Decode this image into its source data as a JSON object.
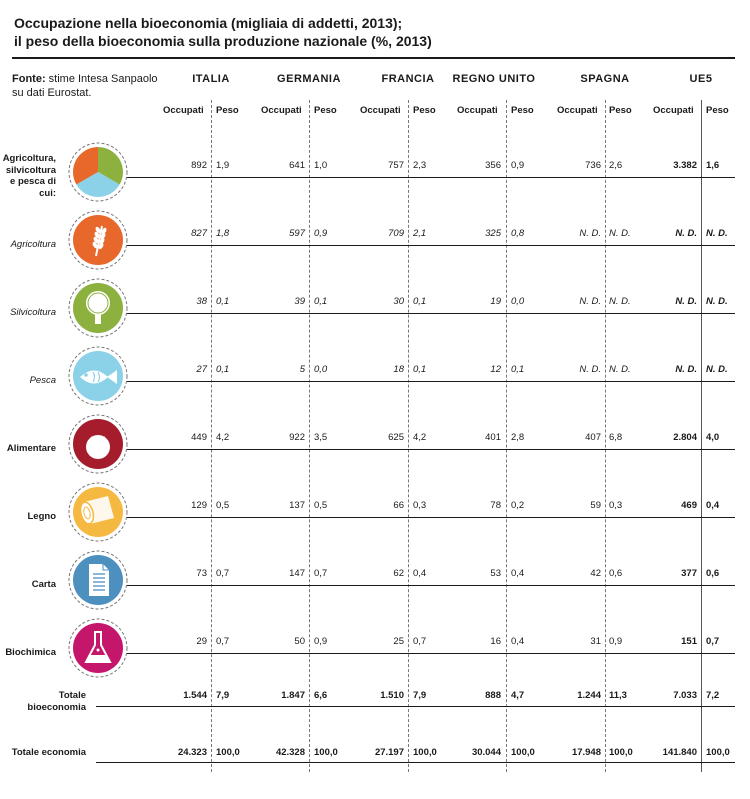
{
  "title_line1": "Occupazione nella bioeconomia (migliaia di addetti, 2013);",
  "title_line2": "il peso della bioeconomia sulla produzione nazionale (%, 2013)",
  "source_label": "Fonte:",
  "source_text": " stime Intesa Sanpaolo su dati Eurostat.",
  "columns": {
    "countries": [
      "ITALIA",
      "GERMANIA",
      "FRANCIA",
      "REGNO UNITO",
      "SPAGNA",
      "UE5"
    ],
    "occupati": "Occupati",
    "peso": "Peso"
  },
  "icons": {
    "agricoltura_silvicoltura_pesca": "pie-icon",
    "agricoltura": "wheat-icon",
    "silvicoltura": "tree-icon",
    "pesca": "fish-icon",
    "alimentare": "tomato-icon",
    "legno": "log-icon",
    "carta": "document-icon",
    "biochimica": "flask-icon"
  },
  "colors": {
    "orange": "#e8672a",
    "green": "#8cb13f",
    "lightblue": "#8bd1e8",
    "darkred": "#a51d2d",
    "yellow": "#f5b942",
    "steelblue": "#4d8fbf",
    "magenta": "#c4176c"
  },
  "chart_data": {
    "type": "table",
    "title": "Occupazione nella bioeconomia (migliaia di addetti, 2013); il peso della bioeconomia sulla produzione nazionale (%, 2013)",
    "columns": [
      "ITALIA",
      "GERMANIA",
      "FRANCIA",
      "REGNO UNITO",
      "SPAGNA",
      "UE5"
    ],
    "subcolumns": [
      "Occupati",
      "Peso"
    ],
    "rows": [
      {
        "label": "Agricoltura, silvicoltura e pesca di cui:",
        "style": "main",
        "values": [
          [
            "892",
            "1,9"
          ],
          [
            "641",
            "1,0"
          ],
          [
            "757",
            "2,3"
          ],
          [
            "356",
            "0,9"
          ],
          [
            "736",
            "2,6"
          ],
          [
            "3.382",
            "1,6"
          ]
        ]
      },
      {
        "label": "Agricoltura",
        "style": "sub",
        "values": [
          [
            "827",
            "1,8"
          ],
          [
            "597",
            "0,9"
          ],
          [
            "709",
            "2,1"
          ],
          [
            "325",
            "0,8"
          ],
          [
            "N. D.",
            "N. D."
          ],
          [
            "N. D.",
            "N. D."
          ]
        ]
      },
      {
        "label": "Silvicoltura",
        "style": "sub",
        "values": [
          [
            "38",
            "0,1"
          ],
          [
            "39",
            "0,1"
          ],
          [
            "30",
            "0,1"
          ],
          [
            "19",
            "0,0"
          ],
          [
            "N. D.",
            "N. D."
          ],
          [
            "N. D.",
            "N. D."
          ]
        ]
      },
      {
        "label": "Pesca",
        "style": "sub",
        "values": [
          [
            "27",
            "0,1"
          ],
          [
            "5",
            "0,0"
          ],
          [
            "18",
            "0,1"
          ],
          [
            "12",
            "0,1"
          ],
          [
            "N. D.",
            "N. D."
          ],
          [
            "N. D.",
            "N. D."
          ]
        ]
      },
      {
        "label": "Alimentare",
        "style": "main",
        "values": [
          [
            "449",
            "4,2"
          ],
          [
            "922",
            "3,5"
          ],
          [
            "625",
            "4,2"
          ],
          [
            "401",
            "2,8"
          ],
          [
            "407",
            "6,8"
          ],
          [
            "2.804",
            "4,0"
          ]
        ]
      },
      {
        "label": "Legno",
        "style": "main",
        "values": [
          [
            "129",
            "0,5"
          ],
          [
            "137",
            "0,5"
          ],
          [
            "66",
            "0,3"
          ],
          [
            "78",
            "0,2"
          ],
          [
            "59",
            "0,3"
          ],
          [
            "469",
            "0,4"
          ]
        ]
      },
      {
        "label": "Carta",
        "style": "main",
        "values": [
          [
            "73",
            "0,7"
          ],
          [
            "147",
            "0,7"
          ],
          [
            "62",
            "0,4"
          ],
          [
            "53",
            "0,4"
          ],
          [
            "42",
            "0,6"
          ],
          [
            "377",
            "0,6"
          ]
        ]
      },
      {
        "label": "Biochimica",
        "style": "main",
        "values": [
          [
            "29",
            "0,7"
          ],
          [
            "50",
            "0,9"
          ],
          [
            "25",
            "0,7"
          ],
          [
            "16",
            "0,4"
          ],
          [
            "31",
            "0,9"
          ],
          [
            "151",
            "0,7"
          ]
        ]
      },
      {
        "label": "Totale bioeconomia",
        "style": "total",
        "values": [
          [
            "1.544",
            "7,9"
          ],
          [
            "1.847",
            "6,6"
          ],
          [
            "1.510",
            "7,9"
          ],
          [
            "888",
            "4,7"
          ],
          [
            "1.244",
            "11,3"
          ],
          [
            "7.033",
            "7,2"
          ]
        ]
      },
      {
        "label": "Totale economia",
        "style": "total",
        "values": [
          [
            "24.323",
            "100,0"
          ],
          [
            "42.328",
            "100,0"
          ],
          [
            "27.197",
            "100,0"
          ],
          [
            "30.044",
            "100,0"
          ],
          [
            "17.948",
            "100,0"
          ],
          [
            "141.840",
            "100,0"
          ]
        ]
      }
    ]
  }
}
